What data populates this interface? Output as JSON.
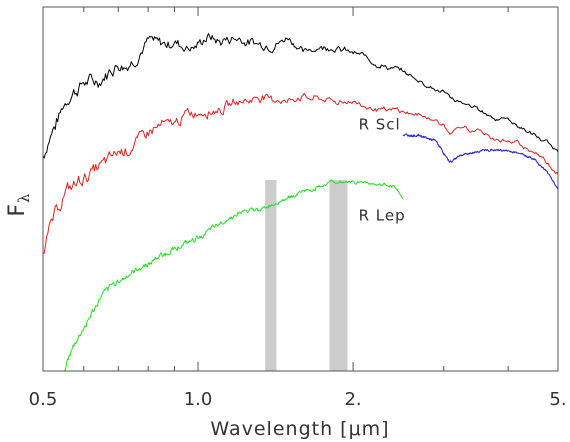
{
  "chart_data": {
    "type": "line",
    "title": "",
    "xlabel": "Wavelength [μm]",
    "ylabel": {
      "main": "F",
      "sub": "λ"
    },
    "xscale": "log",
    "xlim": [
      0.5,
      5.0
    ],
    "xticks": [
      {
        "value": 0.5,
        "label": "0.5"
      },
      {
        "value": 1.0,
        "label": "1.0"
      },
      {
        "value": 2.0,
        "label": "2."
      },
      {
        "value": 5.0,
        "label": "5."
      }
    ],
    "minor_ticks": [
      0.6,
      0.7,
      0.8,
      0.9,
      3.0,
      4.0
    ],
    "shaded_bands": [
      {
        "from": 1.35,
        "to": 1.42,
        "color": "#cccccc"
      },
      {
        "from": 1.8,
        "to": 1.95,
        "color": "#cccccc"
      }
    ],
    "annotations": [
      {
        "text": "R Scl",
        "x": 2.05,
        "y": 0.81
      },
      {
        "text": "R Lep",
        "x": 2.05,
        "y": 0.505
      }
    ],
    "series": [
      {
        "color": "#000000",
        "x": [
          0.5,
          0.52,
          0.55,
          0.6,
          0.65,
          0.7,
          0.75,
          0.8,
          0.85,
          0.9,
          0.95,
          1.0,
          1.05,
          1.1,
          1.2,
          1.3,
          1.4,
          1.5,
          1.6,
          1.7,
          1.8,
          1.9,
          2.0,
          2.2,
          2.5,
          2.8,
          3.0,
          3.05,
          3.1,
          3.2,
          3.4,
          3.5,
          3.7,
          4.0,
          4.5,
          5.0
        ],
        "y": [
          0.72,
          0.8,
          0.9,
          0.97,
          0.97,
          1.03,
          1.04,
          1.1,
          1.09,
          1.1,
          1.09,
          1.1,
          1.12,
          1.1,
          1.12,
          1.1,
          1.09,
          1.12,
          1.07,
          1.08,
          1.09,
          1.08,
          1.07,
          1.04,
          1.0,
          0.96,
          0.94,
          0.92,
          0.91,
          0.9,
          0.89,
          0.88,
          0.86,
          0.84,
          0.79,
          0.73
        ],
        "noise": 0.025
      },
      {
        "color": "#dd2222",
        "x": [
          0.5,
          0.52,
          0.55,
          0.6,
          0.65,
          0.7,
          0.75,
          0.8,
          0.85,
          0.9,
          0.95,
          1.0,
          1.05,
          1.1,
          1.2,
          1.3,
          1.4,
          1.5,
          1.6,
          1.7,
          1.8,
          1.9,
          2.0,
          2.2,
          2.5,
          2.8,
          3.0,
          3.05,
          3.1,
          3.2,
          3.4,
          3.5,
          3.7,
          4.0,
          4.5,
          5.0
        ],
        "y": [
          0.41,
          0.5,
          0.59,
          0.65,
          0.69,
          0.74,
          0.76,
          0.81,
          0.83,
          0.83,
          0.86,
          0.86,
          0.87,
          0.88,
          0.91,
          0.92,
          0.92,
          0.91,
          0.92,
          0.92,
          0.91,
          0.91,
          0.9,
          0.89,
          0.87,
          0.85,
          0.83,
          0.81,
          0.8,
          0.81,
          0.8,
          0.8,
          0.78,
          0.77,
          0.74,
          0.67
        ],
        "noise": 0.025
      },
      {
        "color": "#2222cc",
        "x": [
          2.5,
          2.7,
          2.9,
          3.0,
          3.05,
          3.1,
          3.2,
          3.4,
          3.6,
          3.9,
          4.2,
          4.5,
          4.8,
          5.0
        ],
        "y": [
          0.79,
          0.79,
          0.77,
          0.73,
          0.71,
          0.7,
          0.72,
          0.73,
          0.74,
          0.74,
          0.73,
          0.71,
          0.66,
          0.61
        ],
        "noise": 0.004
      },
      {
        "color": "#22dd22",
        "x": [
          0.55,
          0.58,
          0.6,
          0.65,
          0.7,
          0.75,
          0.8,
          0.85,
          0.9,
          0.95,
          1.0,
          1.05,
          1.1,
          1.2,
          1.3,
          1.4,
          1.5,
          1.6,
          1.7,
          1.8,
          1.9,
          2.0,
          2.2,
          2.4,
          2.5
        ],
        "y": [
          0.01,
          0.1,
          0.14,
          0.25,
          0.3,
          0.33,
          0.36,
          0.39,
          0.41,
          0.43,
          0.45,
          0.47,
          0.49,
          0.53,
          0.54,
          0.56,
          0.58,
          0.6,
          0.61,
          0.63,
          0.63,
          0.63,
          0.63,
          0.62,
          0.58
        ],
        "noise": 0.012
      }
    ]
  }
}
